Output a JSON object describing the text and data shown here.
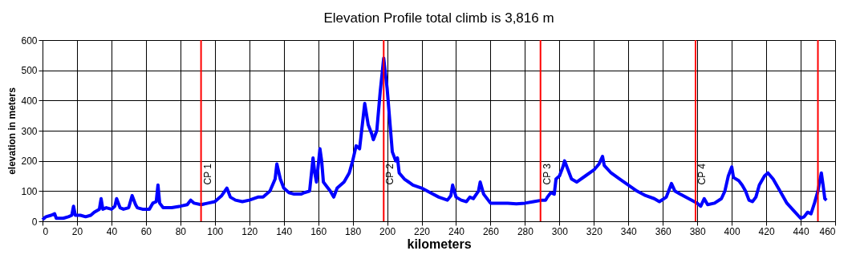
{
  "chart_data": {
    "type": "line",
    "title": "Elevation Profile    total climb is 3,816 m",
    "xlabel": "kilometers",
    "ylabel": "elevation in meters",
    "xlim": [
      0,
      460
    ],
    "xticks": [
      0,
      20,
      40,
      60,
      80,
      100,
      120,
      140,
      160,
      180,
      200,
      220,
      240,
      260,
      280,
      300,
      320,
      340,
      360,
      380,
      400,
      420,
      440,
      460
    ],
    "ylim": [
      0,
      600
    ],
    "yticks": [
      0,
      100,
      200,
      300,
      400,
      500,
      600
    ],
    "grid": true,
    "marker": "none",
    "line_style": "solid",
    "series": [
      {
        "color": "#0000ff",
        "x": [
          0,
          2,
          5,
          7,
          8,
          12,
          15,
          17,
          18,
          19,
          22,
          25,
          28,
          30,
          33,
          34,
          35,
          37,
          40,
          42,
          43,
          45,
          47,
          50,
          52,
          54,
          55,
          58,
          60,
          62,
          64,
          66,
          67,
          68,
          70,
          75,
          80,
          84,
          86,
          88,
          92,
          96,
          100,
          104,
          107,
          109,
          112,
          116,
          120,
          125,
          128,
          132,
          135,
          136,
          138,
          140,
          143,
          146,
          150,
          152,
          155,
          157,
          158,
          159,
          161,
          162,
          163,
          165,
          167,
          169,
          171,
          173,
          175,
          178,
          180,
          182,
          184,
          186,
          187,
          189,
          191,
          192,
          194,
          196,
          198,
          200,
          202,
          203,
          205,
          206,
          207,
          210,
          215,
          220,
          225,
          230,
          235,
          237,
          238,
          240,
          243,
          246,
          248,
          250,
          253,
          254,
          256,
          260,
          265,
          270,
          275,
          280,
          285,
          290,
          292,
          293,
          295,
          297,
          298,
          300,
          302,
          303,
          305,
          307,
          310,
          315,
          320,
          323,
          325,
          326,
          330,
          335,
          340,
          345,
          350,
          355,
          358,
          362,
          365,
          367,
          370,
          375,
          380,
          382,
          384,
          386,
          390,
          394,
          396,
          398,
          400,
          401,
          404,
          406,
          408,
          410,
          412,
          414,
          416,
          419,
          421,
          424,
          428,
          432,
          436,
          440,
          442,
          444,
          446,
          448,
          450,
          452,
          453,
          454,
          455
        ],
        "values": [
          5,
          15,
          20,
          25,
          10,
          10,
          15,
          20,
          50,
          20,
          20,
          15,
          20,
          30,
          40,
          75,
          40,
          45,
          40,
          50,
          75,
          45,
          40,
          45,
          85,
          55,
          45,
          40,
          40,
          40,
          60,
          65,
          120,
          60,
          45,
          45,
          50,
          55,
          70,
          60,
          55,
          60,
          65,
          85,
          110,
          80,
          70,
          65,
          70,
          80,
          80,
          100,
          140,
          190,
          140,
          110,
          95,
          90,
          90,
          95,
          100,
          210,
          160,
          130,
          240,
          200,
          130,
          115,
          100,
          80,
          110,
          120,
          130,
          160,
          200,
          250,
          240,
          340,
          390,
          320,
          290,
          270,
          300,
          430,
          540,
          440,
          300,
          230,
          200,
          210,
          160,
          140,
          120,
          110,
          95,
          80,
          70,
          85,
          120,
          80,
          70,
          65,
          80,
          75,
          100,
          130,
          90,
          60,
          60,
          60,
          58,
          60,
          65,
          70,
          70,
          80,
          95,
          90,
          140,
          150,
          180,
          200,
          170,
          140,
          130,
          150,
          170,
          190,
          215,
          185,
          160,
          140,
          120,
          100,
          85,
          75,
          65,
          80,
          125,
          100,
          90,
          75,
          60,
          50,
          75,
          55,
          60,
          75,
          100,
          150,
          180,
          145,
          135,
          120,
          100,
          70,
          65,
          80,
          120,
          150,
          160,
          140,
          100,
          60,
          35,
          10,
          15,
          30,
          25,
          60,
          100,
          160,
          120,
          75,
          70
        ]
      }
    ],
    "ref_lines": [
      {
        "axis": "x",
        "value": 92,
        "label": "CP 1",
        "color": "#ff0000"
      },
      {
        "axis": "x",
        "value": 198,
        "label": "CP 2",
        "color": "#ff0000"
      },
      {
        "axis": "x",
        "value": 289,
        "label": "CP 3",
        "color": "#ff0000"
      },
      {
        "axis": "x",
        "value": 379,
        "label": "CP 4",
        "color": "#ff0000"
      },
      {
        "axis": "x",
        "value": 450,
        "color": "#ff0000"
      }
    ]
  }
}
